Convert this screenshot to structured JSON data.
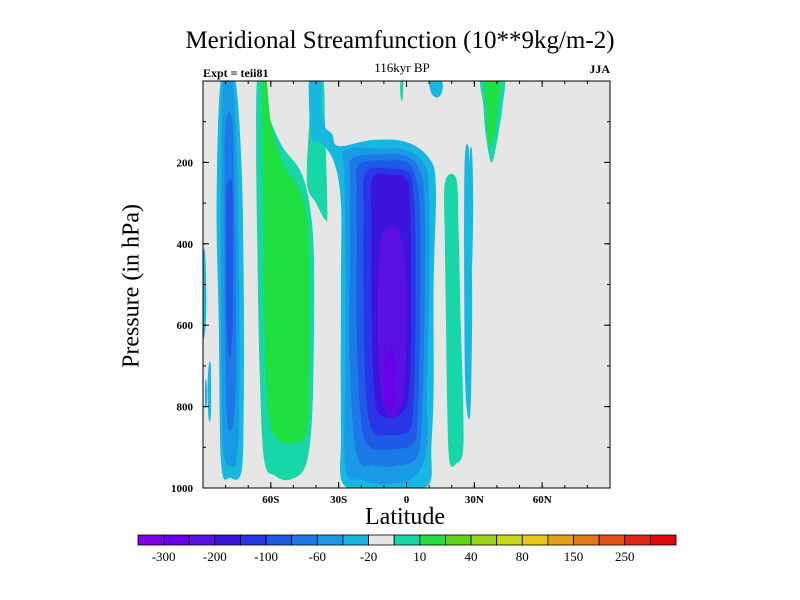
{
  "title": "Meridional Streamfunction (10**9kg/m-2)",
  "subtitle": "116kyr BP",
  "experiment_label": "Expt = teii81",
  "season_label": "JJA",
  "colors": {
    "missing_background": "#e6e6e6",
    "palette": [
      "#8000e8",
      "#6a00e8",
      "#5a10e0",
      "#3c14dc",
      "#2836e6",
      "#1f5ae6",
      "#1c7ae6",
      "#1a9ae6",
      "#16b8e0",
      "#e6e6e6",
      "#17d6a8",
      "#1fe040",
      "#5ed617",
      "#9ad617",
      "#c8d617",
      "#e6c814",
      "#e6a014",
      "#e6781a",
      "#e65014",
      "#e02814",
      "#dc0a0a"
    ]
  },
  "chart_data": {
    "type": "heatmap",
    "title": "Meridional Streamfunction (10**9kg/m-2)",
    "subtitle": "116kyr BP",
    "xlabel": "Latitude",
    "ylabel": "Pressure (in hPa)",
    "xlim": [
      -90,
      90
    ],
    "ylim": [
      1000,
      0
    ],
    "x_ticks": [
      {
        "value": -60,
        "label": "60S"
      },
      {
        "value": -30,
        "label": "30S"
      },
      {
        "value": 0,
        "label": "0"
      },
      {
        "value": 30,
        "label": "30N"
      },
      {
        "value": 60,
        "label": "60N"
      }
    ],
    "y_ticks": [
      {
        "value": 200,
        "label": "200"
      },
      {
        "value": 400,
        "label": "400"
      },
      {
        "value": 600,
        "label": "600"
      },
      {
        "value": 800,
        "label": "800"
      },
      {
        "value": 1000,
        "label": "1000"
      }
    ],
    "colorbar": {
      "levels": [
        -300,
        -250,
        -200,
        -150,
        -100,
        -80,
        -60,
        -40,
        -20,
        -10,
        10,
        20,
        40,
        60,
        80,
        100,
        150,
        200,
        250,
        300
      ],
      "labels": [
        "-300",
        "-200",
        "-100",
        "-60",
        "-20",
        "10",
        "40",
        "80",
        "150",
        "250"
      ],
      "orientation": "horizontal",
      "placement": "bottom"
    },
    "cells": [
      {
        "name": "southern-negative-cell",
        "sign": "negative",
        "lat_range": [
          -80,
          -70
        ],
        "pressure_range": [
          0,
          970
        ],
        "min_value": -60
      },
      {
        "name": "southern-positive-cell",
        "sign": "positive",
        "lat_range": [
          -64,
          -36
        ],
        "pressure_range": [
          0,
          960
        ],
        "max_value": 40
      },
      {
        "name": "tropical-negative-cell",
        "sign": "negative",
        "lat_range": [
          -28,
          10
        ],
        "pressure_range": [
          150,
          1000
        ],
        "min_value": -200
      },
      {
        "name": "tropical-positive-cell",
        "sign": "positive",
        "lat_range": [
          17,
          25
        ],
        "pressure_range": [
          260,
          920
        ],
        "max_value": 10
      },
      {
        "name": "northern-positive-cell",
        "sign": "positive",
        "lat_range": [
          33,
          42
        ],
        "pressure_range": [
          0,
          150
        ],
        "max_value": 20
      }
    ]
  }
}
